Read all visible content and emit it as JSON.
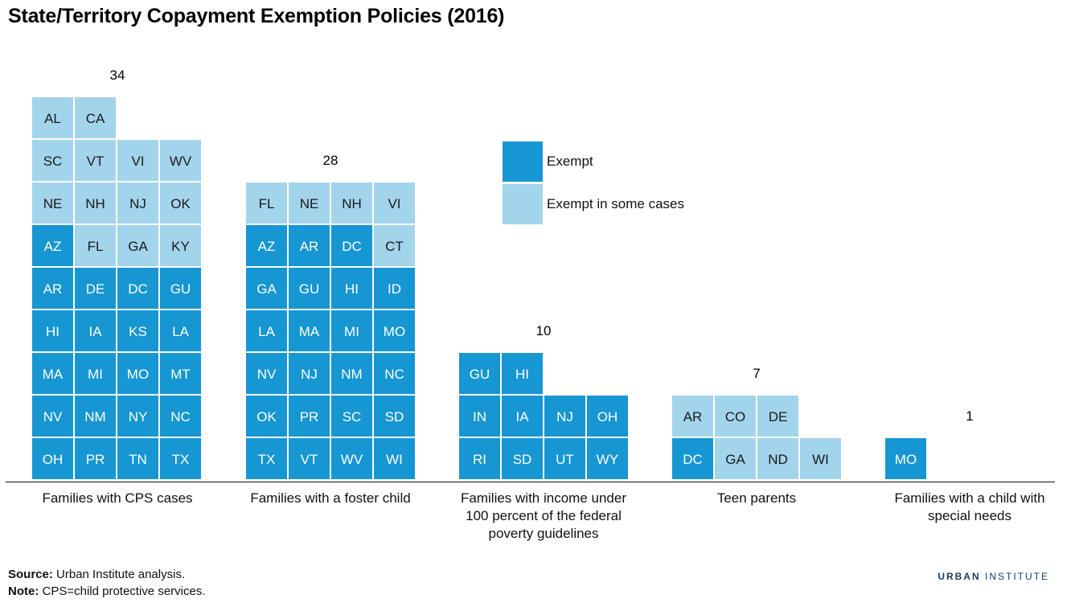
{
  "title": "State/Territory Copayment Exemption Policies (2016)",
  "colors": {
    "exempt": "#1696d2",
    "some": "#a2d4ec",
    "axis": "#333333"
  },
  "legend": [
    {
      "label": "Exempt",
      "key": "exempt"
    },
    {
      "label": "Exempt in some cases",
      "key": "some"
    }
  ],
  "chart_data": {
    "type": "waffle",
    "categories": [
      {
        "label": "Families with CPS cases",
        "count": "34",
        "some": [
          "FL",
          "GA",
          "KY",
          "NE",
          "NH",
          "NJ",
          "OK",
          "SC",
          "VT",
          "VI",
          "WV",
          "AL",
          "CA"
        ],
        "exempt": [
          "OH",
          "PR",
          "TN",
          "TX",
          "NV",
          "NM",
          "NY",
          "NC",
          "MA",
          "MI",
          "MO",
          "MT",
          "HI",
          "IA",
          "KS",
          "LA",
          "AR",
          "DE",
          "DC",
          "GU",
          "AZ"
        ]
      },
      {
        "label": "Families with a foster child",
        "count": "28",
        "some": [
          "CT",
          "FL",
          "NE",
          "NH",
          "VI"
        ],
        "exempt": [
          "TX",
          "VT",
          "WV",
          "WI",
          "OK",
          "PR",
          "SC",
          "SD",
          "NV",
          "NJ",
          "NM",
          "NC",
          "LA",
          "MA",
          "MI",
          "MO",
          "GA",
          "GU",
          "HI",
          "ID",
          "AZ",
          "AR",
          "DC"
        ]
      },
      {
        "label": "Families with income under 100 percent of the federal poverty guidelines",
        "count": "10",
        "some": [],
        "exempt": [
          "RI",
          "SD",
          "UT",
          "WY",
          "IN",
          "IA",
          "NJ",
          "OH",
          "GU",
          "HI"
        ]
      },
      {
        "label": "Teen parents",
        "count": "7",
        "some": [
          "GA",
          "ND",
          "WI",
          "AR",
          "CO",
          "DE"
        ],
        "exempt": [
          "DC"
        ]
      },
      {
        "label": "Families with a child with special needs",
        "count": "1",
        "some": [],
        "exempt": [
          "MO"
        ]
      }
    ]
  },
  "footer": {
    "source_label": "Source:",
    "source_text": "Urban Institute analysis.",
    "note_label": "Note:",
    "note_text": "CPS=child protective services."
  },
  "brand": {
    "part1": "URBAN",
    "part2": "INSTITUTE"
  }
}
